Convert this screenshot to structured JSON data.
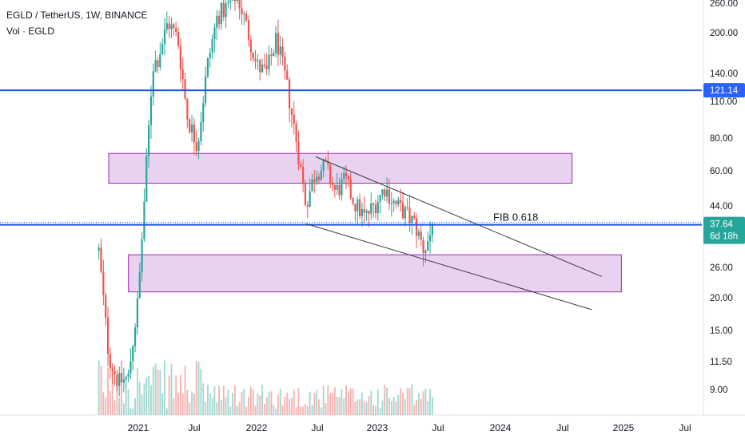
{
  "legend": {
    "symbol_line": "EGLD / TetherUS, 1W, BINANCE",
    "volume_line": "Vol · EGLD"
  },
  "colors": {
    "up": "#26a69a",
    "down": "#ef5350",
    "vol_up": "#9fd6cf",
    "vol_down": "#f5b0ae",
    "hline": "#1e53e5",
    "zone_fill": "#e8d2ef",
    "zone_stroke": "#9c27b0",
    "trendline": "#363a45",
    "price_tag_blue": "#2962ff",
    "price_tag_green": "#26a69a"
  },
  "chart_data": {
    "type": "candlestick",
    "title": "EGLD / TetherUS, 1W, BINANCE",
    "y_scale": "log",
    "y_ticks": [
      "260.00",
      "200.00",
      "140.00",
      "110.00",
      "80.00",
      "60.00",
      "44.00",
      "26.00",
      "20.00",
      "15.00",
      "11.50",
      "9.00"
    ],
    "x_ticks": [
      "2021",
      "Jul",
      "2022",
      "Jul",
      "2023",
      "Jul",
      "2024",
      "Jul",
      "2025",
      "Jul"
    ],
    "key_points": [
      {
        "date": "2020-09",
        "price": 30
      },
      {
        "date": "2020-10",
        "price": 12
      },
      {
        "date": "2020-11",
        "price": 9.5
      },
      {
        "date": "2020-12",
        "price": 10
      },
      {
        "date": "2021-01",
        "price": 20
      },
      {
        "date": "2021-02",
        "price": 80
      },
      {
        "date": "2021-02-15",
        "price": 150
      },
      {
        "date": "2021-03",
        "price": 160
      },
      {
        "date": "2021-04",
        "price": 220
      },
      {
        "date": "2021-05",
        "price": 190
      },
      {
        "date": "2021-06",
        "price": 95
      },
      {
        "date": "2021-07",
        "price": 75
      },
      {
        "date": "2021-08",
        "price": 150
      },
      {
        "date": "2021-09",
        "price": 230
      },
      {
        "date": "2021-10",
        "price": 250
      },
      {
        "date": "2021-11",
        "price": 280
      },
      {
        "date": "2021-12",
        "price": 210
      },
      {
        "date": "2022-01",
        "price": 150
      },
      {
        "date": "2022-02",
        "price": 140
      },
      {
        "date": "2022-03",
        "price": 190
      },
      {
        "date": "2022-04",
        "price": 130
      },
      {
        "date": "2022-05",
        "price": 80
      },
      {
        "date": "2022-06",
        "price": 45
      },
      {
        "date": "2022-07",
        "price": 60
      },
      {
        "date": "2022-08",
        "price": 62
      },
      {
        "date": "2022-09",
        "price": 50
      },
      {
        "date": "2022-10",
        "price": 55
      },
      {
        "date": "2022-11",
        "price": 45
      },
      {
        "date": "2022-12",
        "price": 40
      },
      {
        "date": "2023-01",
        "price": 45
      },
      {
        "date": "2023-02",
        "price": 52
      },
      {
        "date": "2023-03",
        "price": 45
      },
      {
        "date": "2023-04",
        "price": 42
      },
      {
        "date": "2023-05",
        "price": 38
      },
      {
        "date": "2023-06",
        "price": 30
      },
      {
        "date": "2023-07",
        "price": 37.64
      }
    ],
    "horizontal_lines": [
      {
        "price": 121.14,
        "label": "121.14"
      },
      {
        "price": 37.64,
        "label": "37.64",
        "sublabel": "6d 18h"
      }
    ],
    "zones": [
      {
        "from_date": "2020-10",
        "to_date": "2024-09",
        "low": 54,
        "high": 70
      },
      {
        "from_date": "2020-12",
        "to_date": "2025-02",
        "low": 21,
        "high": 29
      }
    ],
    "trendlines": [
      {
        "from": {
          "date": "2022-07",
          "price": 68
        },
        "to": {
          "date": "2024-12",
          "price": 24
        }
      },
      {
        "from": {
          "date": "2022-06",
          "price": 38
        },
        "to": {
          "date": "2024-11",
          "price": 18
        }
      }
    ],
    "annotations": [
      {
        "text": "FIB 0.618",
        "date": "2024-01",
        "price": 39
      }
    ]
  }
}
